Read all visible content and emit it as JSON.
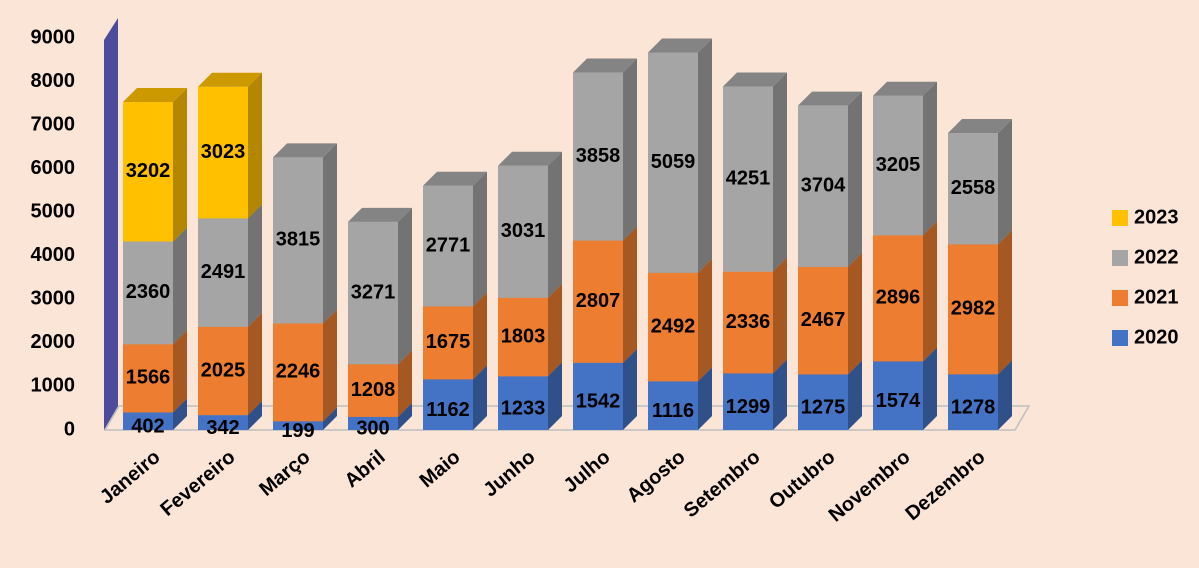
{
  "chart_data": {
    "type": "bar3d_stacked",
    "categories": [
      "Janeiro",
      "Fevereiro",
      "Março",
      "Abril",
      "Maio",
      "Junho",
      "Julho",
      "Agosto",
      "Setembro",
      "Outubro",
      "Novembro",
      "Dezembro"
    ],
    "series": [
      {
        "name": "2020",
        "color": "#4472c4",
        "values": [
          402,
          342,
          199,
          300,
          1162,
          1233,
          1542,
          1116,
          1299,
          1275,
          1574,
          1278
        ]
      },
      {
        "name": "2021",
        "color": "#ed7d31",
        "values": [
          1566,
          2025,
          2246,
          1208,
          1675,
          1803,
          2807,
          2492,
          2336,
          2467,
          2896,
          2982
        ]
      },
      {
        "name": "2022",
        "color": "#a5a5a5",
        "values": [
          2360,
          2491,
          3815,
          3271,
          2771,
          3031,
          3858,
          5059,
          4251,
          3704,
          3205,
          2558
        ]
      },
      {
        "name": "2023",
        "color": "#ffc000",
        "values": [
          3202,
          3023,
          null,
          null,
          null,
          null,
          null,
          null,
          null,
          null,
          null,
          null
        ]
      }
    ],
    "ylim": [
      0,
      9000
    ],
    "yticks": [
      0,
      1000,
      2000,
      3000,
      4000,
      5000,
      6000,
      7000,
      8000,
      9000
    ],
    "legend": "right"
  }
}
